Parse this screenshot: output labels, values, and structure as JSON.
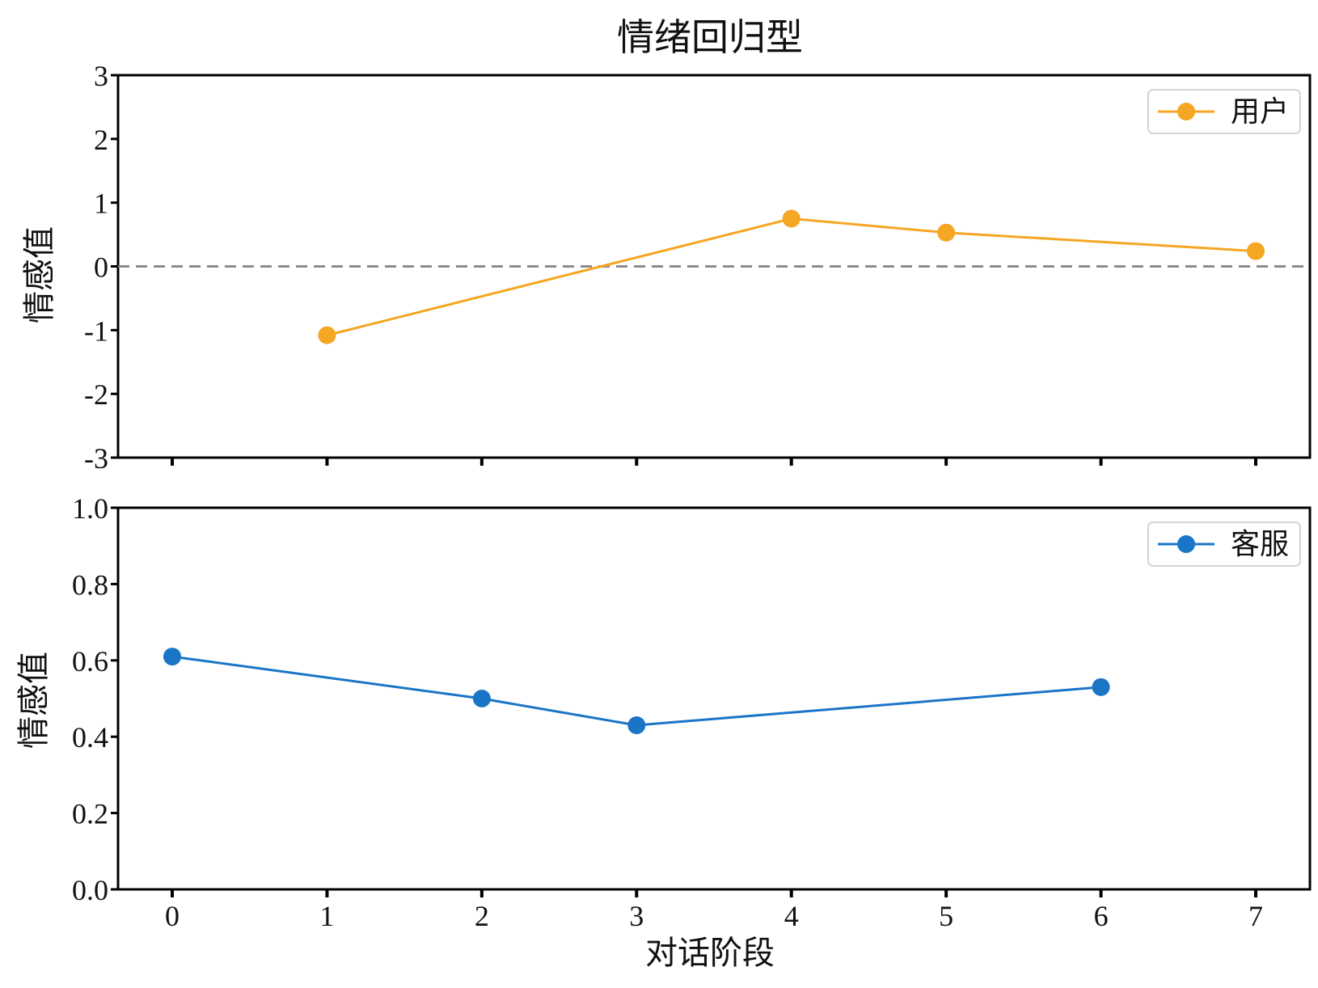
{
  "chart_data": [
    {
      "type": "line",
      "title": "情绪回归型",
      "xlabel": "",
      "ylabel": "情感值",
      "xlim": [
        -0.35,
        7.35
      ],
      "ylim": [
        -3,
        3
      ],
      "yticks": [
        3,
        2,
        1,
        0,
        -1,
        -2,
        -3
      ],
      "ytick_labels": [
        "3",
        "2",
        "1",
        "0",
        "-1",
        "-2",
        "-3"
      ],
      "xticks": [
        0,
        1,
        2,
        3,
        4,
        5,
        6,
        7
      ],
      "show_xtick_labels": false,
      "reference_line": {
        "y": 0,
        "style": "dashed",
        "color": "#8c8c8c"
      },
      "legend": {
        "position": "top-right"
      },
      "series": [
        {
          "name": "用户",
          "color": "#f5a623",
          "x": [
            1,
            4,
            5,
            7
          ],
          "values": [
            -1.08,
            0.75,
            0.53,
            0.24
          ]
        }
      ]
    },
    {
      "type": "line",
      "title": "",
      "xlabel": "对话阶段",
      "ylabel": "情感值",
      "xlim": [
        -0.35,
        7.35
      ],
      "ylim": [
        0,
        1.0
      ],
      "yticks": [
        1.0,
        0.8,
        0.6,
        0.4,
        0.2,
        0.0
      ],
      "ytick_labels": [
        "1.0",
        "0.8",
        "0.6",
        "0.4",
        "0.2",
        "0.0"
      ],
      "xticks": [
        0,
        1,
        2,
        3,
        4,
        5,
        6,
        7
      ],
      "xtick_labels": [
        "0",
        "1",
        "2",
        "3",
        "4",
        "5",
        "6",
        "7"
      ],
      "show_xtick_labels": true,
      "legend": {
        "position": "top-right"
      },
      "series": [
        {
          "name": "客服",
          "color": "#1b75c7",
          "x": [
            0,
            2,
            3,
            6
          ],
          "values": [
            0.61,
            0.5,
            0.43,
            0.53
          ]
        }
      ]
    }
  ]
}
